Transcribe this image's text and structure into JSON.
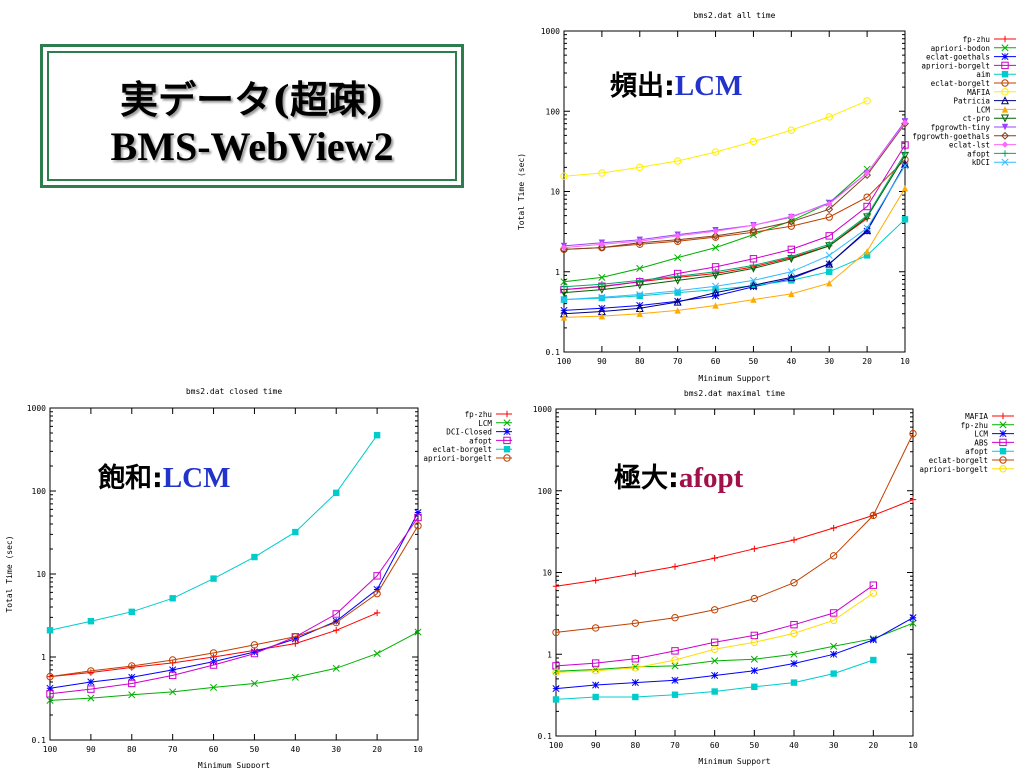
{
  "slide": {
    "title_line1": "実データ(超疎)",
    "title_line2": "BMS-WebView2",
    "annotations": [
      {
        "label": "頻出:",
        "algo": "LCM",
        "algo_color": "#2233cc"
      },
      {
        "label": "飽和:",
        "algo": "LCM",
        "algo_color": "#2233cc"
      },
      {
        "label": "極大:",
        "algo": "afopt",
        "algo_color": "#a0104a"
      }
    ]
  },
  "chart_data": [
    {
      "type": "line",
      "title": "bms2.dat all time",
      "xlabel": "Minimum Support",
      "ylabel": "Total Time (sec)",
      "log_y": true,
      "ylim": [
        0.1,
        1000
      ],
      "y_ticks": [
        "0.1",
        "1",
        "10",
        "100",
        "1000"
      ],
      "x": [
        100,
        90,
        80,
        70,
        60,
        50,
        40,
        30,
        20,
        10
      ],
      "grid": false,
      "legend_position": "top-right",
      "series": [
        {
          "name": "fp-zhu",
          "color": "#ff0000",
          "marker": "plus",
          "values": [
            0.6,
            0.65,
            0.75,
            0.85,
            0.95,
            1.15,
            1.5,
            2.1,
            4.6,
            null
          ]
        },
        {
          "name": "apriori-bodon",
          "color": "#00b000",
          "marker": "x",
          "values": [
            0.75,
            0.85,
            1.1,
            1.5,
            2.0,
            2.9,
            4.3,
            7.2,
            19,
            null
          ]
        },
        {
          "name": "eclat-goethals",
          "color": "#0000ff",
          "marker": "star",
          "values": [
            0.33,
            0.35,
            0.38,
            0.43,
            0.5,
            0.65,
            0.82,
            1.25,
            3.2,
            22
          ]
        },
        {
          "name": "apriori-borgelt",
          "color": "#cc00cc",
          "marker": "square",
          "values": [
            0.6,
            0.66,
            0.75,
            0.95,
            1.15,
            1.45,
            1.9,
            2.8,
            6.5,
            38
          ]
        },
        {
          "name": "aim",
          "color": "#00cccc",
          "marker": "filled-square",
          "values": [
            0.45,
            0.47,
            0.5,
            0.55,
            0.6,
            0.67,
            0.78,
            1.0,
            1.6,
            4.5
          ]
        },
        {
          "name": "eclat-borgelt",
          "color": "#c04000",
          "marker": "circle",
          "values": [
            1.9,
            2.0,
            2.2,
            2.4,
            2.7,
            3.1,
            3.7,
            4.8,
            8.5,
            25
          ]
        },
        {
          "name": "MAFIA",
          "color": "#ffee00",
          "marker": "circle",
          "values": [
            15.5,
            17,
            20,
            24,
            31,
            42,
            58,
            85,
            135,
            null
          ]
        },
        {
          "name": "Patricia",
          "color": "#000080",
          "marker": "triangle",
          "values": [
            0.3,
            0.32,
            0.35,
            0.42,
            0.55,
            0.68,
            0.85,
            1.25,
            3.3,
            22
          ]
        },
        {
          "name": "LCM",
          "color": "#ffaa00",
          "marker": "filled-triangle",
          "values": [
            0.27,
            0.28,
            0.3,
            0.33,
            0.38,
            0.45,
            0.53,
            0.72,
            1.8,
            11
          ]
        },
        {
          "name": "ct-pro",
          "color": "#006000",
          "marker": "inv-triangle",
          "values": [
            0.55,
            0.6,
            0.68,
            0.78,
            0.9,
            1.1,
            1.45,
            2.1,
            4.8,
            28
          ]
        },
        {
          "name": "fpgrowth-tiny",
          "color": "#9944ff",
          "marker": "filled-inv-triangle",
          "values": [
            2.1,
            2.3,
            2.5,
            2.9,
            3.3,
            3.8,
            4.8,
            7.2,
            17,
            75
          ]
        },
        {
          "name": "fpgrowth-goethals",
          "color": "#804020",
          "marker": "diamond",
          "values": [
            1.9,
            2.0,
            2.3,
            2.5,
            2.8,
            3.3,
            4.2,
            6.0,
            16,
            70
          ]
        },
        {
          "name": "eclat-lst",
          "color": "#ff66ff",
          "marker": "filled-diamond",
          "values": [
            2.0,
            2.2,
            2.4,
            2.8,
            3.2,
            3.8,
            4.9,
            7.0,
            17,
            72
          ]
        },
        {
          "name": "afopt",
          "color": "#00aa66",
          "marker": "plus",
          "values": [
            0.65,
            0.7,
            0.78,
            0.88,
            1.0,
            1.2,
            1.55,
            2.2,
            5.0,
            30
          ]
        },
        {
          "name": "kDCI",
          "color": "#33bbff",
          "marker": "x",
          "values": [
            0.45,
            0.48,
            0.52,
            0.58,
            0.66,
            0.78,
            1.0,
            1.6,
            3.5,
            21
          ]
        }
      ]
    },
    {
      "type": "line",
      "title": "bms2.dat closed time",
      "xlabel": "Minimum Support",
      "ylabel": "Total Time (sec)",
      "log_y": true,
      "ylim": [
        0.1,
        1000
      ],
      "y_ticks": [
        "0.1",
        "1",
        "10",
        "100",
        "1000"
      ],
      "x": [
        100,
        90,
        80,
        70,
        60,
        50,
        40,
        30,
        20,
        10
      ],
      "grid": false,
      "legend_position": "top-right",
      "series": [
        {
          "name": "fp-zhu",
          "color": "#ff0000",
          "marker": "plus",
          "values": [
            0.58,
            0.65,
            0.75,
            0.85,
            1.0,
            1.2,
            1.45,
            2.1,
            3.4,
            null
          ]
        },
        {
          "name": "LCM",
          "color": "#00b000",
          "marker": "x",
          "values": [
            0.3,
            0.32,
            0.35,
            0.38,
            0.43,
            0.48,
            0.57,
            0.73,
            1.1,
            2.0
          ]
        },
        {
          "name": "DCI-Closed",
          "color": "#0000ff",
          "marker": "star",
          "values": [
            0.42,
            0.5,
            0.57,
            0.7,
            0.88,
            1.15,
            1.65,
            2.7,
            6.5,
            55
          ]
        },
        {
          "name": "afopt",
          "color": "#cc00cc",
          "marker": "square",
          "values": [
            0.36,
            0.41,
            0.48,
            0.6,
            0.8,
            1.1,
            1.75,
            3.3,
            9.5,
            48
          ]
        },
        {
          "name": "eclat-borgelt",
          "color": "#00cccc",
          "marker": "filled-square",
          "values": [
            2.1,
            2.7,
            3.5,
            5.1,
            8.8,
            16,
            32,
            95,
            470,
            null
          ]
        },
        {
          "name": "apriori-borgelt",
          "color": "#c04000",
          "marker": "circle",
          "values": [
            0.58,
            0.68,
            0.78,
            0.92,
            1.12,
            1.4,
            1.75,
            2.6,
            5.8,
            38
          ]
        }
      ]
    },
    {
      "type": "line",
      "title": "bms2.dat maximal time",
      "xlabel": "Minimum Support",
      "ylabel": "",
      "log_y": true,
      "ylim": [
        0.1,
        1000
      ],
      "y_ticks": [
        "0.1",
        "1",
        "10",
        "100",
        "1000"
      ],
      "x": [
        100,
        90,
        80,
        70,
        60,
        50,
        40,
        30,
        20,
        10
      ],
      "grid": false,
      "legend_position": "top-right",
      "series": [
        {
          "name": "MAFIA",
          "color": "#ff0000",
          "marker": "plus",
          "values": [
            6.8,
            8.0,
            9.7,
            11.8,
            15,
            19.5,
            25,
            35,
            50,
            78
          ]
        },
        {
          "name": "fp-zhu",
          "color": "#00b000",
          "marker": "x",
          "values": [
            0.62,
            0.65,
            0.7,
            0.72,
            0.83,
            0.87,
            1.0,
            1.25,
            1.55,
            2.4
          ]
        },
        {
          "name": "LCM",
          "color": "#0000ff",
          "marker": "star",
          "values": [
            0.38,
            0.42,
            0.45,
            0.48,
            0.55,
            0.63,
            0.77,
            1.0,
            1.5,
            2.8
          ]
        },
        {
          "name": "ABS",
          "color": "#cc00cc",
          "marker": "square",
          "values": [
            0.72,
            0.78,
            0.88,
            1.1,
            1.4,
            1.7,
            2.3,
            3.2,
            7.0,
            null
          ]
        },
        {
          "name": "afopt",
          "color": "#00cccc",
          "marker": "filled-square",
          "values": [
            0.28,
            0.3,
            0.3,
            0.32,
            0.35,
            0.4,
            0.45,
            0.58,
            0.85,
            null
          ]
        },
        {
          "name": "eclat-borgelt",
          "color": "#c04000",
          "marker": "circle",
          "values": [
            1.85,
            2.1,
            2.4,
            2.8,
            3.5,
            4.8,
            7.5,
            16,
            50,
            500
          ]
        },
        {
          "name": "apriori-borgelt",
          "color": "#ffdd00",
          "marker": "circle",
          "values": [
            0.6,
            0.63,
            0.68,
            0.85,
            1.15,
            1.4,
            1.8,
            2.6,
            5.6,
            null
          ]
        }
      ]
    }
  ]
}
